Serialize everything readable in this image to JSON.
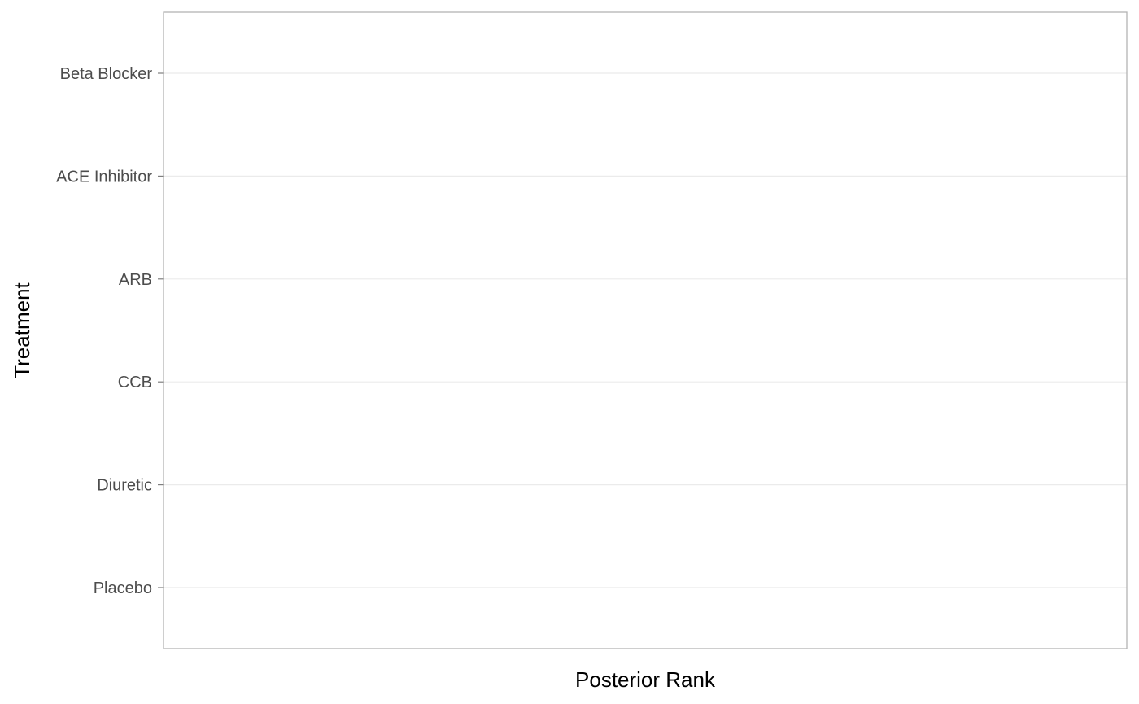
{
  "chart_data": {
    "type": "scatter",
    "title": "",
    "xlabel": "Posterior Rank",
    "ylabel": "Treatment",
    "categories": [
      "Placebo",
      "Diuretic",
      "CCB",
      "ARB",
      "ACE Inhibitor",
      "Beta Blocker"
    ],
    "series": [],
    "x_ticks": [],
    "grid": true,
    "legend": "none"
  }
}
